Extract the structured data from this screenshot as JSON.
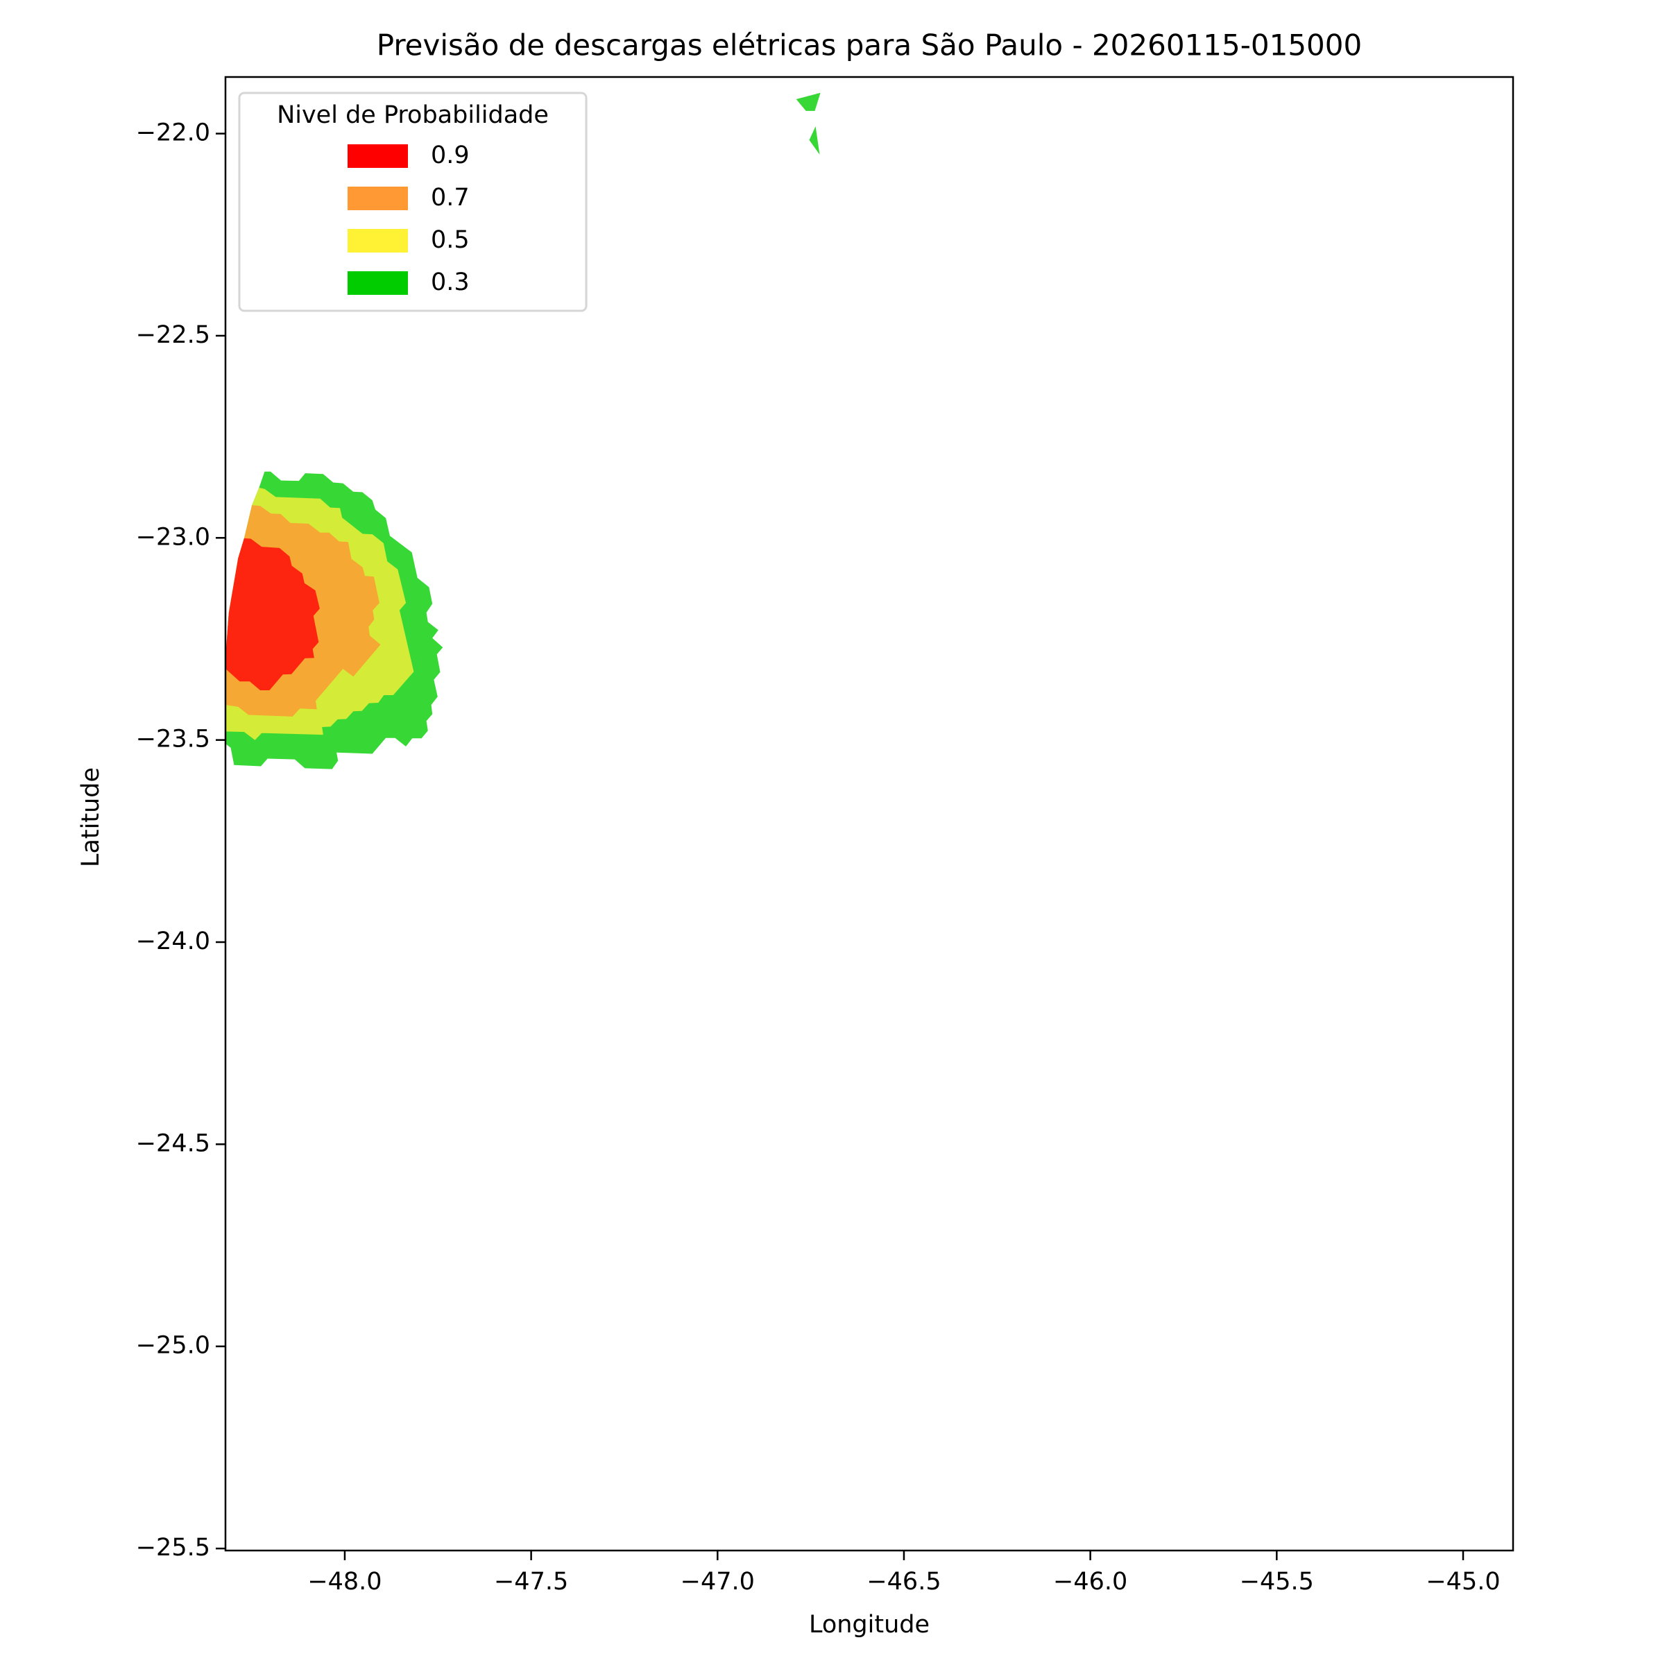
{
  "chart_data": {
    "type": "contour",
    "title": "Previsão de descargas elétricas para São Paulo - 20260115-015000",
    "xlabel": "Longitude",
    "ylabel": "Latitude",
    "xlim": [
      -48.32,
      -44.866
    ],
    "ylim": [
      -25.505,
      -21.86
    ],
    "xticks": [
      -48.0,
      -47.5,
      -47.0,
      -46.5,
      -46.0,
      -45.5,
      -45.0
    ],
    "xtick_labels": [
      "−48.0",
      "−47.5",
      "−47.0",
      "−46.5",
      "−46.0",
      "−45.5",
      "−45.0"
    ],
    "yticks": [
      -22.0,
      -22.5,
      -23.0,
      -23.5,
      -24.0,
      -24.5,
      -25.0,
      -25.5
    ],
    "ytick_labels": [
      "−22.0",
      "−22.5",
      "−23.0",
      "−23.5",
      "−24.0",
      "−24.5",
      "−25.0",
      "−25.5"
    ],
    "grid": false,
    "legend": {
      "title": "Nivel de Probabilidade",
      "placement": "top-left",
      "entries": [
        {
          "label": "0.9",
          "color": "#ff0000"
        },
        {
          "label": "0.7",
          "color": "#ff9933"
        },
        {
          "label": "0.5",
          "color": "#fff133"
        },
        {
          "label": "0.3",
          "color": "#00cc00"
        }
      ]
    },
    "levels": [
      {
        "level": 0.3,
        "color": "#37d836",
        "polygons": [
          [
            [
              -48.215,
              -22.836
            ],
            [
              -48.199,
              -22.836
            ],
            [
              -48.171,
              -22.858
            ],
            [
              -48.123,
              -22.859
            ],
            [
              -48.106,
              -22.84
            ],
            [
              -48.058,
              -22.842
            ],
            [
              -48.031,
              -22.863
            ],
            [
              -48.005,
              -22.865
            ],
            [
              -47.977,
              -22.886
            ],
            [
              -47.953,
              -22.887
            ],
            [
              -47.926,
              -22.907
            ],
            [
              -47.918,
              -22.93
            ],
            [
              -47.89,
              -22.951
            ],
            [
              -47.879,
              -22.995
            ],
            [
              -47.82,
              -23.036
            ],
            [
              -47.805,
              -23.099
            ],
            [
              -47.774,
              -23.122
            ],
            [
              -47.765,
              -23.163
            ],
            [
              -47.781,
              -23.185
            ],
            [
              -47.777,
              -23.208
            ],
            [
              -47.749,
              -23.228
            ],
            [
              -47.765,
              -23.248
            ],
            [
              -47.737,
              -23.271
            ],
            [
              -47.753,
              -23.288
            ],
            [
              -47.744,
              -23.332
            ],
            [
              -47.761,
              -23.351
            ],
            [
              -47.751,
              -23.393
            ],
            [
              -47.768,
              -23.413
            ],
            [
              -47.765,
              -23.436
            ],
            [
              -47.781,
              -23.453
            ],
            [
              -47.777,
              -23.477
            ],
            [
              -47.794,
              -23.496
            ],
            [
              -47.819,
              -23.496
            ],
            [
              -47.836,
              -23.516
            ],
            [
              -47.865,
              -23.495
            ],
            [
              -47.89,
              -23.495
            ],
            [
              -47.926,
              -23.534
            ],
            [
              -48.022,
              -23.531
            ],
            [
              -48.018,
              -23.551
            ],
            [
              -48.034,
              -23.572
            ],
            [
              -48.107,
              -23.57
            ],
            [
              -48.134,
              -23.548
            ],
            [
              -48.207,
              -23.546
            ],
            [
              -48.225,
              -23.565
            ],
            [
              -48.297,
              -23.562
            ],
            [
              -48.306,
              -23.519
            ],
            [
              -48.322,
              -23.508
            ],
            [
              -48.322,
              -23.322
            ],
            [
              -48.311,
              -23.185
            ],
            [
              -48.286,
              -23.05
            ],
            [
              -48.27,
              -23.001
            ],
            [
              -48.249,
              -22.919
            ],
            [
              -48.23,
              -22.876
            ]
          ],
          [
            [
              -46.789,
              -21.915
            ],
            [
              -46.724,
              -21.899
            ],
            [
              -46.739,
              -21.944
            ],
            [
              -46.763,
              -21.944
            ]
          ],
          [
            [
              -46.737,
              -21.982
            ],
            [
              -46.754,
              -22.016
            ],
            [
              -46.726,
              -22.052
            ]
          ]
        ]
      },
      {
        "level": 0.5,
        "color": "#d4ec38",
        "polygons": [
          [
            [
              -48.23,
              -22.876
            ],
            [
              -48.215,
              -22.879
            ],
            [
              -48.185,
              -22.899
            ],
            [
              -48.066,
              -22.903
            ],
            [
              -48.039,
              -22.925
            ],
            [
              -48.013,
              -22.926
            ],
            [
              -48.007,
              -22.95
            ],
            [
              -47.952,
              -22.99
            ],
            [
              -47.926,
              -22.991
            ],
            [
              -47.896,
              -23.013
            ],
            [
              -47.886,
              -23.058
            ],
            [
              -47.858,
              -23.078
            ],
            [
              -47.836,
              -23.161
            ],
            [
              -47.853,
              -23.179
            ],
            [
              -47.815,
              -23.331
            ],
            [
              -47.87,
              -23.389
            ],
            [
              -47.895,
              -23.389
            ],
            [
              -47.91,
              -23.408
            ],
            [
              -47.935,
              -23.409
            ],
            [
              -47.954,
              -23.428
            ],
            [
              -47.977,
              -23.429
            ],
            [
              -47.996,
              -23.448
            ],
            [
              -48.019,
              -23.449
            ],
            [
              -48.038,
              -23.467
            ],
            [
              -48.061,
              -23.468
            ],
            [
              -48.058,
              -23.487
            ],
            [
              -48.223,
              -23.483
            ],
            [
              -48.241,
              -23.5
            ],
            [
              -48.27,
              -23.48
            ],
            [
              -48.322,
              -23.479
            ],
            [
              -48.322,
              -23.322
            ],
            [
              -48.311,
              -23.185
            ],
            [
              -48.286,
              -23.05
            ],
            [
              -48.27,
              -23.001
            ],
            [
              -48.249,
              -22.919
            ]
          ]
        ]
      },
      {
        "level": 0.7,
        "color": "#f5a833",
        "polygons": [
          [
            [
              -48.249,
              -22.919
            ],
            [
              -48.227,
              -22.921
            ],
            [
              -48.198,
              -22.94
            ],
            [
              -48.172,
              -22.941
            ],
            [
              -48.146,
              -22.963
            ],
            [
              -48.097,
              -22.965
            ],
            [
              -48.066,
              -22.987
            ],
            [
              -48.042,
              -22.987
            ],
            [
              -48.015,
              -23.009
            ],
            [
              -47.991,
              -23.01
            ],
            [
              -47.982,
              -23.052
            ],
            [
              -47.952,
              -23.073
            ],
            [
              -47.946,
              -23.094
            ],
            [
              -47.922,
              -23.096
            ],
            [
              -47.907,
              -23.161
            ],
            [
              -47.925,
              -23.179
            ],
            [
              -47.921,
              -23.202
            ],
            [
              -47.936,
              -23.22
            ],
            [
              -47.933,
              -23.242
            ],
            [
              -47.904,
              -23.264
            ],
            [
              -47.977,
              -23.343
            ],
            [
              -48.005,
              -23.324
            ],
            [
              -48.078,
              -23.403
            ],
            [
              -48.075,
              -23.424
            ],
            [
              -48.12,
              -23.422
            ],
            [
              -48.14,
              -23.442
            ],
            [
              -48.258,
              -23.438
            ],
            [
              -48.286,
              -23.418
            ],
            [
              -48.32,
              -23.413
            ],
            [
              -48.322,
              -23.322
            ],
            [
              -48.311,
              -23.185
            ],
            [
              -48.286,
              -23.05
            ],
            [
              -48.27,
              -23.001
            ]
          ]
        ]
      },
      {
        "level": 0.9,
        "color": "#fd250f",
        "polygons": [
          [
            [
              -48.27,
              -23.001
            ],
            [
              -48.252,
              -23.002
            ],
            [
              -48.223,
              -23.022
            ],
            [
              -48.175,
              -23.025
            ],
            [
              -48.148,
              -23.046
            ],
            [
              -48.142,
              -23.069
            ],
            [
              -48.114,
              -23.088
            ],
            [
              -48.108,
              -23.112
            ],
            [
              -48.079,
              -23.13
            ],
            [
              -48.067,
              -23.175
            ],
            [
              -48.084,
              -23.193
            ],
            [
              -48.07,
              -23.258
            ],
            [
              -48.086,
              -23.275
            ],
            [
              -48.082,
              -23.297
            ],
            [
              -48.107,
              -23.298
            ],
            [
              -48.143,
              -23.337
            ],
            [
              -48.166,
              -23.338
            ],
            [
              -48.202,
              -23.377
            ],
            [
              -48.227,
              -23.377
            ],
            [
              -48.255,
              -23.355
            ],
            [
              -48.282,
              -23.355
            ],
            [
              -48.322,
              -23.322
            ],
            [
              -48.311,
              -23.185
            ],
            [
              -48.286,
              -23.05
            ]
          ]
        ]
      }
    ]
  }
}
